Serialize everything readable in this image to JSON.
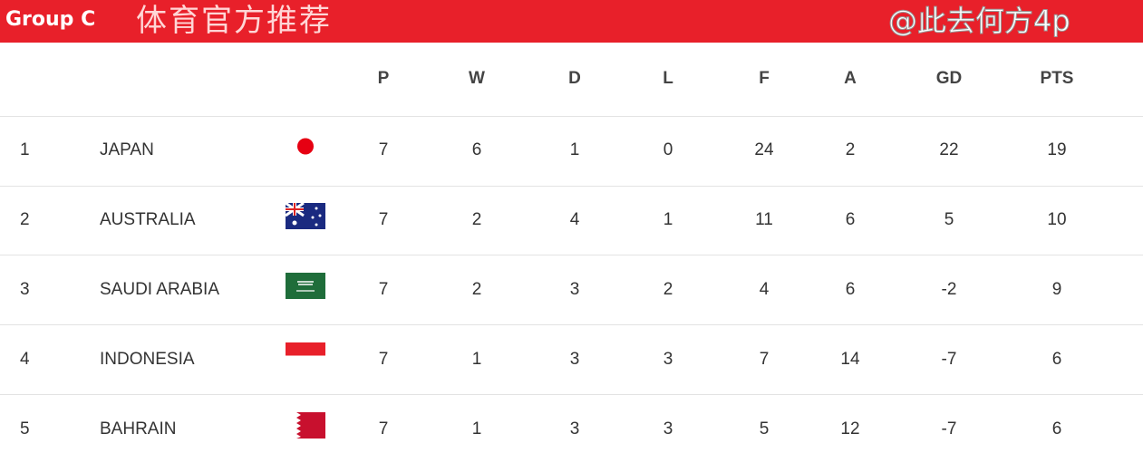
{
  "header": {
    "title": "Group C"
  },
  "watermark_top": "体育官方推荐",
  "watermark_bottom": "@此去何方4p",
  "columns": [
    "P",
    "W",
    "D",
    "L",
    "F",
    "A",
    "GD",
    "PTS"
  ],
  "rows": [
    {
      "rank": "1",
      "team": "JAPAN",
      "flag": "japan-flag",
      "P": "7",
      "W": "6",
      "D": "1",
      "L": "0",
      "F": "24",
      "A": "2",
      "GD": "22",
      "PTS": "19"
    },
    {
      "rank": "2",
      "team": "AUSTRALIA",
      "flag": "australia-flag",
      "P": "7",
      "W": "2",
      "D": "4",
      "L": "1",
      "F": "11",
      "A": "6",
      "GD": "5",
      "PTS": "10"
    },
    {
      "rank": "3",
      "team": "SAUDI ARABIA",
      "flag": "saudi-arabia-flag",
      "P": "7",
      "W": "2",
      "D": "3",
      "L": "2",
      "F": "4",
      "A": "6",
      "GD": "-2",
      "PTS": "9"
    },
    {
      "rank": "4",
      "team": "INDONESIA",
      "flag": "indonesia-flag",
      "P": "7",
      "W": "1",
      "D": "3",
      "L": "3",
      "F": "7",
      "A": "14",
      "GD": "-7",
      "PTS": "6"
    },
    {
      "rank": "5",
      "team": "BAHRAIN",
      "flag": "bahrain-flag",
      "P": "7",
      "W": "1",
      "D": "3",
      "L": "3",
      "F": "5",
      "A": "12",
      "GD": "-7",
      "PTS": "6"
    }
  ],
  "colors": {
    "header_bg": "#e8202a"
  }
}
